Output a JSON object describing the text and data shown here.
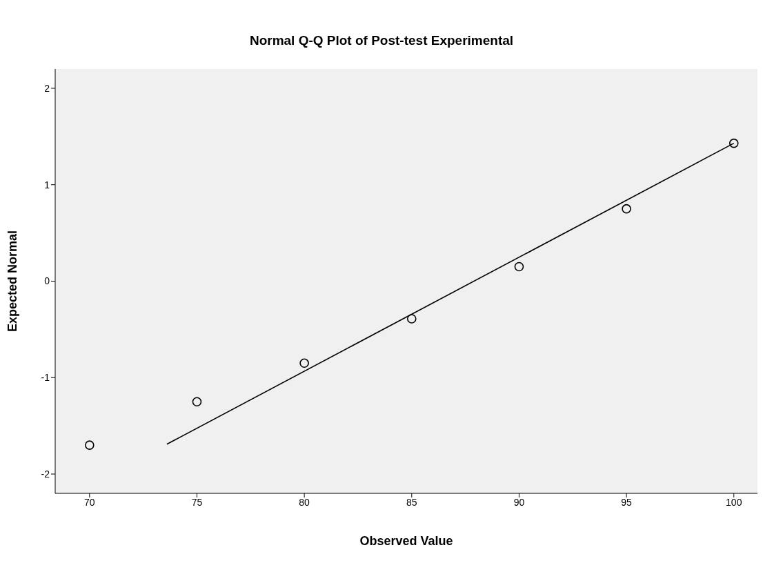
{
  "chart_data": {
    "type": "scatter",
    "title": "Normal Q-Q Plot of Post-test Experimental",
    "xlabel": "Observed Value",
    "ylabel": "Expected Normal",
    "xlim": [
      68.4,
      101.1
    ],
    "xticks": [
      70,
      75,
      80,
      85,
      90,
      95,
      100
    ],
    "ylim": [
      -2.2,
      2.2
    ],
    "yticks": [
      -2,
      -1,
      0,
      1,
      2
    ],
    "grid": false,
    "legend": false,
    "series": [
      {
        "color": "#000000",
        "marker": "circle",
        "x": [
          70,
          75,
          80,
          85,
          90,
          95,
          100
        ],
        "values": [
          -1.7,
          -1.25,
          -0.85,
          -0.39,
          0.15,
          0.75,
          1.43
        ]
      },
      {
        "type": "line",
        "color": "#000000",
        "marker": "none",
        "line_style": "solid",
        "x": [
          73.6,
          100
        ],
        "values": [
          -1.69,
          1.43
        ]
      }
    ]
  }
}
